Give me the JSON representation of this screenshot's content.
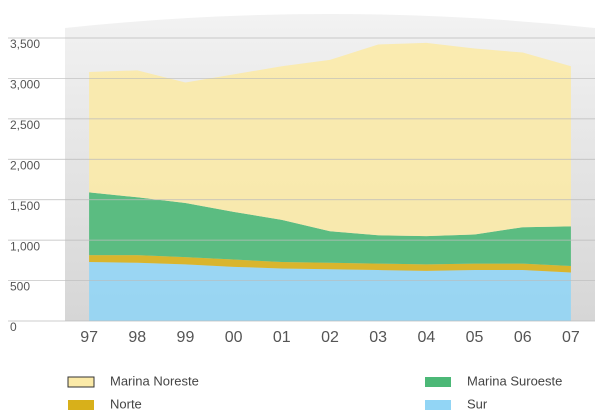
{
  "chart_data": {
    "type": "stacked_area",
    "categories": [
      "97",
      "98",
      "99",
      "00",
      "01",
      "02",
      "03",
      "04",
      "05",
      "06",
      "07"
    ],
    "series": [
      {
        "name": "Sur",
        "color": "#92d5f5",
        "values": [
          730,
          720,
          700,
          670,
          650,
          640,
          630,
          620,
          630,
          630,
          600
        ]
      },
      {
        "name": "Norte",
        "color": "#d8b01a",
        "values": [
          85,
          95,
          90,
          90,
          80,
          80,
          80,
          80,
          80,
          80,
          80
        ]
      },
      {
        "name": "Marina Suroeste",
        "color": "#4cb877",
        "values": [
          775,
          715,
          670,
          590,
          520,
          390,
          350,
          350,
          360,
          450,
          490
        ]
      },
      {
        "name": "Marina Noreste",
        "color": "#fbeaa8",
        "values": [
          1490,
          1570,
          1490,
          1700,
          1900,
          2120,
          2360,
          2390,
          2300,
          2160,
          1980
        ]
      }
    ],
    "legend_order": [
      3,
      2,
      1,
      0
    ],
    "ylim": [
      0,
      3500
    ],
    "yticks": [
      0,
      500,
      {
        "value": 1000,
        "label": "1,000"
      },
      {
        "value": 1500,
        "label": "1,500"
      },
      {
        "value": 2000,
        "label": "2,000"
      },
      {
        "value": 2500,
        "label": "2,500"
      },
      {
        "value": 3000,
        "label": "3,000"
      },
      {
        "value": 3500,
        "label": "3,500"
      }
    ],
    "grid": true
  }
}
